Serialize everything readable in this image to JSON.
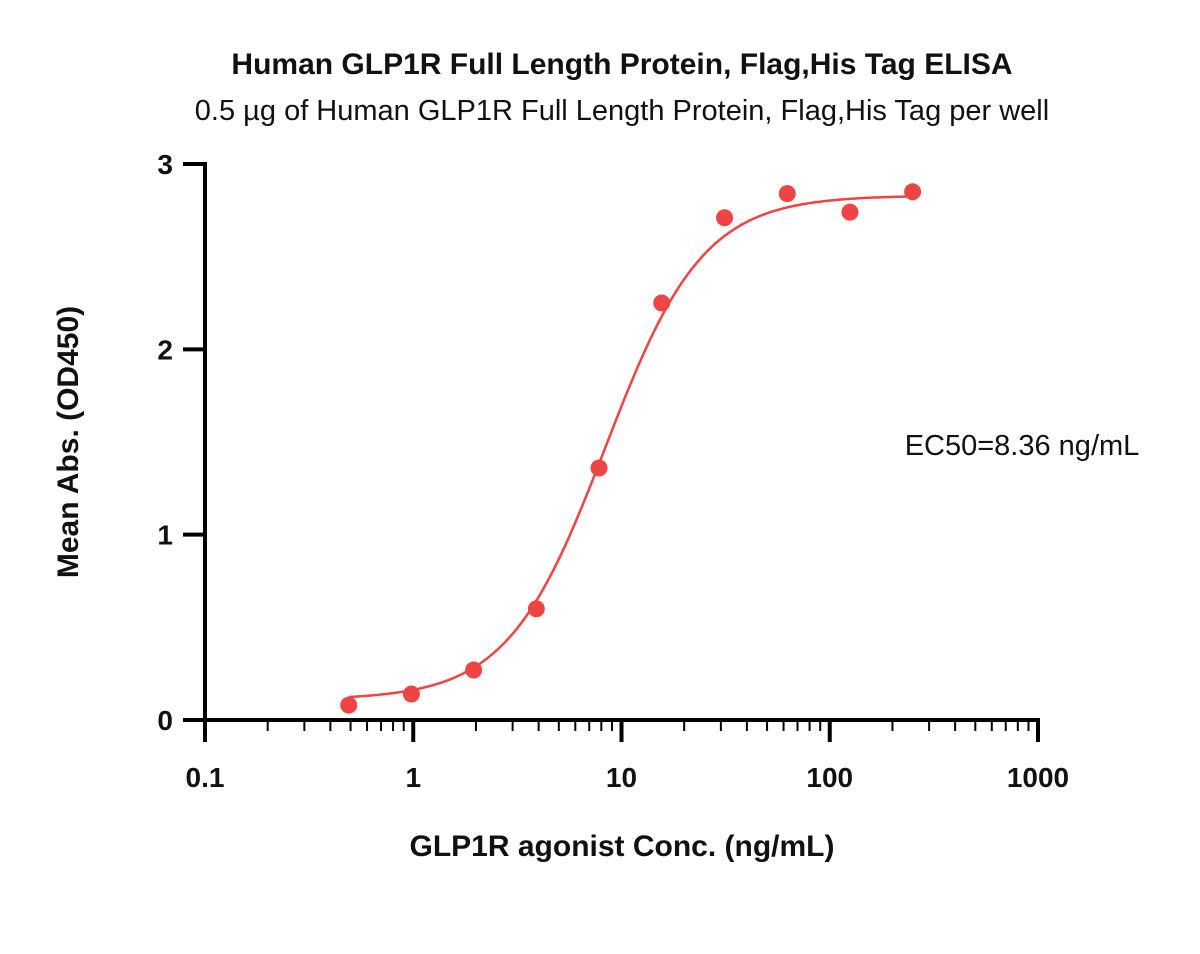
{
  "chart_data": {
    "type": "scatter",
    "title": "Human GLP1R Full Length Protein, Flag,His Tag ELISA",
    "subtitle": "0.5 µg of Human GLP1R Full Length Protein, Flag,His Tag per well",
    "xlabel": "GLP1R agonist Conc. (ng/mL)",
    "ylabel": "Mean Abs. (OD450)",
    "x_scale": "log",
    "xlim": [
      0.1,
      1000
    ],
    "ylim": [
      0,
      3
    ],
    "x_ticks": [
      0.1,
      1,
      10,
      100,
      1000
    ],
    "x_tick_labels": [
      "0.1",
      "1",
      "10",
      "100",
      "1000"
    ],
    "y_ticks": [
      0,
      1,
      2,
      3
    ],
    "y_tick_labels": [
      "0",
      "1",
      "2",
      "3"
    ],
    "grid": false,
    "color": "#ee4444",
    "series": [
      {
        "x": [
          0.49,
          0.98,
          1.95,
          3.9,
          7.8,
          15.6,
          31.25,
          62.5,
          125,
          250
        ],
        "y": [
          0.08,
          0.14,
          0.27,
          0.6,
          1.36,
          2.25,
          2.71,
          2.84,
          2.74,
          2.85
        ]
      }
    ],
    "fit_curve": {
      "model": "4PL",
      "bottom": 0.11,
      "top": 2.83,
      "ec50": 8.36,
      "hill": 1.85
    },
    "annotation": "EC50=8.36 ng/mL"
  }
}
